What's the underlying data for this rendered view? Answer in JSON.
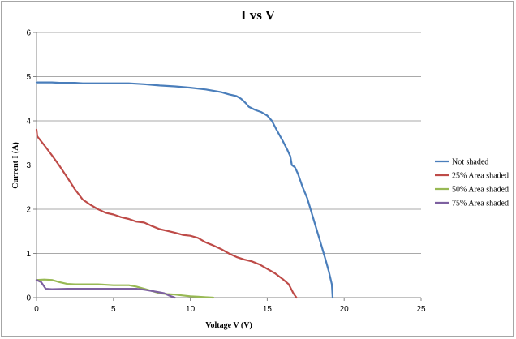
{
  "chart_data": {
    "type": "line",
    "title": "I vs V",
    "xlabel": "Voltage V (V)",
    "ylabel": "Current I (A)",
    "xlim": [
      0,
      25
    ],
    "ylim": [
      0,
      6
    ],
    "xticks": [
      0,
      5,
      10,
      15,
      20,
      25
    ],
    "yticks": [
      0,
      1,
      2,
      3,
      4,
      5,
      6
    ],
    "grid": "horizontal",
    "legend": "right",
    "series": [
      {
        "name": "Not shaded",
        "color": "#4a7ebb",
        "points": [
          [
            0,
            4.87
          ],
          [
            0.5,
            4.87
          ],
          [
            1,
            4.87
          ],
          [
            1.5,
            4.86
          ],
          [
            2.5,
            4.86
          ],
          [
            3,
            4.85
          ],
          [
            4,
            4.85
          ],
          [
            5,
            4.85
          ],
          [
            6,
            4.85
          ],
          [
            7,
            4.83
          ],
          [
            8,
            4.8
          ],
          [
            9,
            4.78
          ],
          [
            10,
            4.75
          ],
          [
            11,
            4.71
          ],
          [
            12,
            4.65
          ],
          [
            12.5,
            4.6
          ],
          [
            13,
            4.56
          ],
          [
            13.3,
            4.5
          ],
          [
            13.6,
            4.4
          ],
          [
            13.8,
            4.32
          ],
          [
            14.2,
            4.25
          ],
          [
            14.6,
            4.2
          ],
          [
            15,
            4.12
          ],
          [
            15.3,
            4.0
          ],
          [
            15.6,
            3.8
          ],
          [
            16,
            3.55
          ],
          [
            16.3,
            3.35
          ],
          [
            16.5,
            3.2
          ],
          [
            16.6,
            3.0
          ],
          [
            16.8,
            2.95
          ],
          [
            17,
            2.8
          ],
          [
            17.3,
            2.5
          ],
          [
            17.6,
            2.25
          ],
          [
            17.9,
            1.9
          ],
          [
            18.2,
            1.55
          ],
          [
            18.5,
            1.2
          ],
          [
            18.8,
            0.85
          ],
          [
            19,
            0.6
          ],
          [
            19.2,
            0.3
          ],
          [
            19.25,
            0.0
          ]
        ]
      },
      {
        "name": "25% Area shaded",
        "color": "#be4b48",
        "points": [
          [
            0,
            3.8
          ],
          [
            0.05,
            3.65
          ],
          [
            0.5,
            3.45
          ],
          [
            1,
            3.22
          ],
          [
            1.5,
            2.98
          ],
          [
            2,
            2.72
          ],
          [
            2.5,
            2.45
          ],
          [
            3,
            2.22
          ],
          [
            3.5,
            2.1
          ],
          [
            4,
            2.0
          ],
          [
            4.5,
            1.92
          ],
          [
            5,
            1.88
          ],
          [
            5.5,
            1.82
          ],
          [
            6,
            1.78
          ],
          [
            6.5,
            1.72
          ],
          [
            7,
            1.7
          ],
          [
            7.5,
            1.62
          ],
          [
            8,
            1.55
          ],
          [
            8.5,
            1.51
          ],
          [
            9,
            1.47
          ],
          [
            9.5,
            1.42
          ],
          [
            10,
            1.4
          ],
          [
            10.5,
            1.35
          ],
          [
            11,
            1.25
          ],
          [
            11.5,
            1.18
          ],
          [
            12,
            1.1
          ],
          [
            12.5,
            1.0
          ],
          [
            13,
            0.92
          ],
          [
            13.5,
            0.86
          ],
          [
            14,
            0.82
          ],
          [
            14.5,
            0.75
          ],
          [
            15,
            0.65
          ],
          [
            15.5,
            0.55
          ],
          [
            16,
            0.42
          ],
          [
            16.4,
            0.3
          ],
          [
            16.7,
            0.1
          ],
          [
            16.9,
            0.0
          ]
        ]
      },
      {
        "name": "50% Area shaded",
        "color": "#98b954",
        "points": [
          [
            0,
            0.4
          ],
          [
            0.5,
            0.41
          ],
          [
            1,
            0.4
          ],
          [
            1.5,
            0.35
          ],
          [
            2,
            0.31
          ],
          [
            2.5,
            0.3
          ],
          [
            3,
            0.3
          ],
          [
            4,
            0.3
          ],
          [
            5,
            0.28
          ],
          [
            6,
            0.28
          ],
          [
            6.5,
            0.25
          ],
          [
            7,
            0.2
          ],
          [
            7.5,
            0.15
          ],
          [
            8,
            0.1
          ],
          [
            8.5,
            0.08
          ],
          [
            9,
            0.07
          ],
          [
            9.5,
            0.05
          ],
          [
            10,
            0.03
          ],
          [
            10.5,
            0.02
          ],
          [
            11,
            0.01
          ],
          [
            11.5,
            0.0
          ]
        ]
      },
      {
        "name": "75% Area shaded",
        "color": "#7d60a0",
        "points": [
          [
            0,
            0.4
          ],
          [
            0.3,
            0.35
          ],
          [
            0.6,
            0.2
          ],
          [
            1,
            0.19
          ],
          [
            2,
            0.2
          ],
          [
            3,
            0.2
          ],
          [
            4,
            0.2
          ],
          [
            5,
            0.2
          ],
          [
            6,
            0.2
          ],
          [
            6.5,
            0.2
          ],
          [
            7,
            0.18
          ],
          [
            7.5,
            0.15
          ],
          [
            8,
            0.12
          ],
          [
            8.3,
            0.1
          ],
          [
            8.6,
            0.05
          ],
          [
            9,
            0.0
          ]
        ]
      }
    ]
  }
}
